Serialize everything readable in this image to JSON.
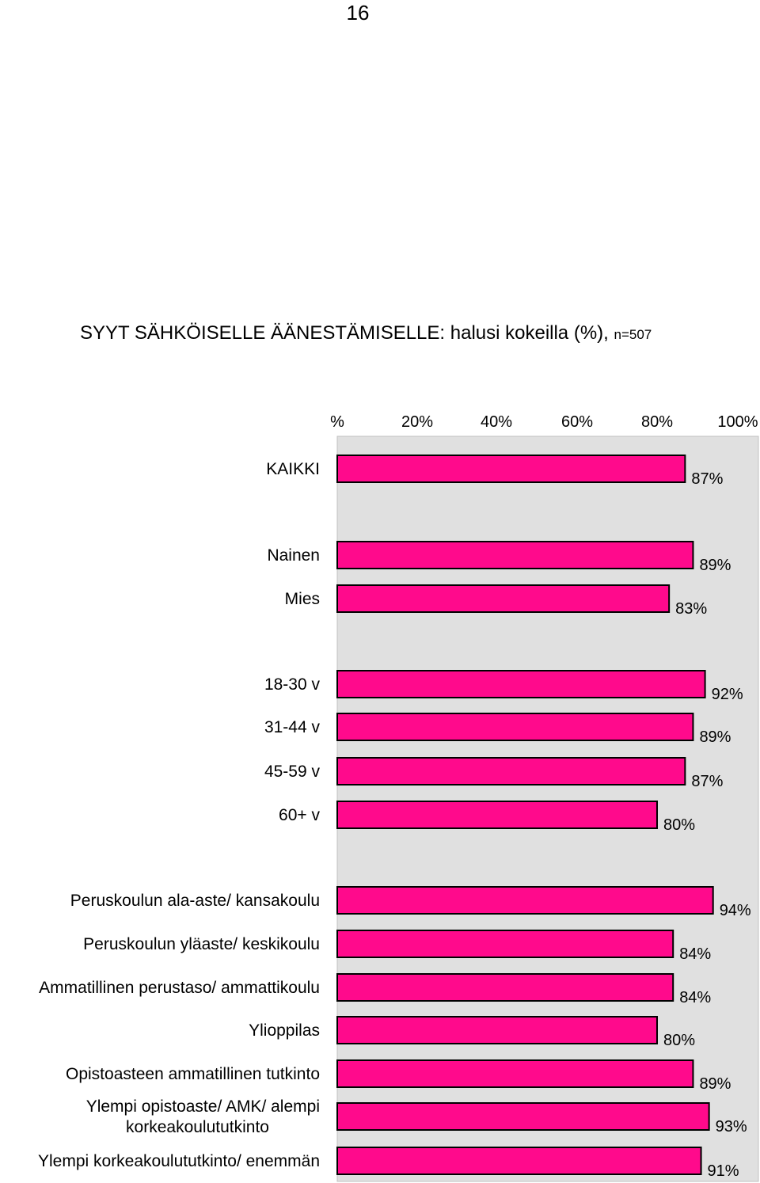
{
  "page": {
    "page_number": "16"
  },
  "colors": {
    "bar_fill": "#ff0a8c",
    "bar_stroke": "#000000",
    "plot_background": "#e0e0e0",
    "plot_border": "#c0c0c0"
  },
  "chart_data": {
    "type": "bar",
    "orientation": "horizontal",
    "title": "SYYT SÄHKÖISELLE ÄÄNESTÄMISELLE: halusi kokeilla (%),",
    "title_note": "n=507",
    "xlabel": "",
    "ylabel": "",
    "xlim": [
      0,
      100
    ],
    "x_ticks": [
      "%",
      "20%",
      "40%",
      "60%",
      "80%",
      "100%"
    ],
    "grid": false,
    "legend": "none",
    "value_suffix": "%",
    "categories": [
      [
        "KAIKKI"
      ],
      [
        "Nainen"
      ],
      [
        "Mies"
      ],
      [
        "18-30 v"
      ],
      [
        "31-44 v"
      ],
      [
        "45-59 v"
      ],
      [
        "60+ v"
      ],
      [
        "Peruskoulun ala-aste/ kansakoulu"
      ],
      [
        "Peruskoulun yläaste/ keskikoulu"
      ],
      [
        "Ammatillinen perustaso/ ammattikoulu"
      ],
      [
        "Ylioppilas"
      ],
      [
        "Opistoasteen ammatillinen tutkinto"
      ],
      [
        "Ylempi opistoaste/ AMK/ alempi",
        "korkeakoulututkinto"
      ],
      [
        "Ylempi korkeakoulututkinto/ enemmän"
      ]
    ],
    "values": [
      87,
      89,
      83,
      92,
      89,
      87,
      80,
      94,
      84,
      84,
      80,
      89,
      93,
      91
    ]
  }
}
